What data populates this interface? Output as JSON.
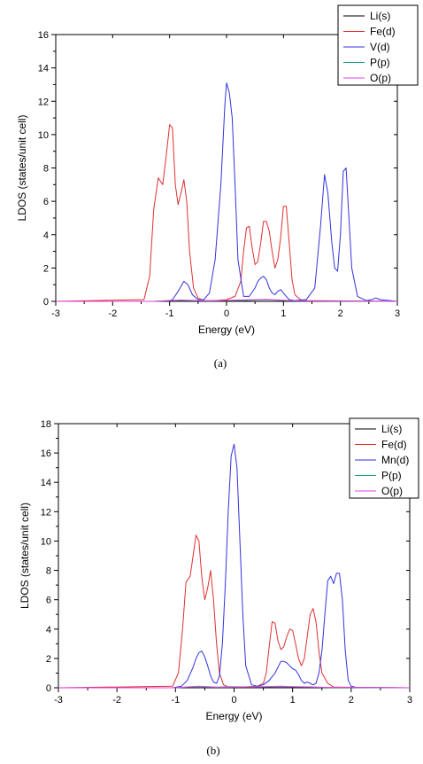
{
  "chart_data": [
    {
      "type": "line",
      "panel_label": "(a)",
      "xlabel": "Energy (eV)",
      "ylabel": "LDOS (states/unit cell)",
      "xlim": [
        -3,
        3
      ],
      "ylim": [
        0,
        16
      ],
      "xticks": [
        -3,
        -2,
        -1,
        0,
        1,
        2,
        3
      ],
      "yticks": [
        0,
        2,
        4,
        6,
        8,
        10,
        12,
        14,
        16
      ],
      "grid": false,
      "legend_position": "top-right",
      "series": [
        {
          "name": "Li(s)",
          "color": "#000000",
          "x": [
            -3,
            3
          ],
          "y": [
            0,
            0
          ]
        },
        {
          "name": "Fe(d)",
          "color": "#e03030",
          "x": [
            -3,
            -1.45,
            -1.35,
            -1.28,
            -1.2,
            -1.12,
            -1.05,
            -1.0,
            -0.95,
            -0.9,
            -0.85,
            -0.8,
            -0.75,
            -0.7,
            -0.65,
            -0.58,
            -0.5,
            -0.4,
            -0.2,
            0,
            0.15,
            0.25,
            0.3,
            0.35,
            0.4,
            0.45,
            0.5,
            0.55,
            0.6,
            0.65,
            0.7,
            0.75,
            0.8,
            0.85,
            0.9,
            0.95,
            1.0,
            1.05,
            1.1,
            1.15,
            1.2,
            1.3,
            1.4,
            3
          ],
          "y": [
            0,
            0.1,
            1.5,
            5.5,
            7.4,
            7.0,
            9.0,
            10.6,
            10.4,
            7.0,
            5.8,
            6.5,
            7.3,
            6.0,
            3.0,
            0.8,
            0.2,
            0.05,
            0.05,
            0.1,
            0.3,
            1.2,
            3.0,
            4.4,
            4.5,
            3.2,
            2.2,
            2.4,
            3.5,
            4.8,
            4.8,
            4.2,
            3.0,
            2.0,
            2.5,
            3.8,
            5.7,
            5.7,
            3.5,
            1.3,
            0.4,
            0.1,
            0.05,
            0
          ]
        },
        {
          "name": "V(d)",
          "color": "#3232e0",
          "x": [
            -3,
            -1.2,
            -1.0,
            -0.95,
            -0.85,
            -0.75,
            -0.68,
            -0.6,
            -0.5,
            -0.4,
            -0.3,
            -0.2,
            -0.1,
            -0.03,
            0.0,
            0.05,
            0.1,
            0.15,
            0.2,
            0.3,
            0.4,
            0.5,
            0.55,
            0.6,
            0.65,
            0.7,
            0.75,
            0.8,
            0.85,
            0.9,
            0.95,
            1.0,
            1.05,
            1.1,
            1.2,
            1.4,
            1.55,
            1.65,
            1.72,
            1.78,
            1.85,
            1.9,
            1.95,
            2.0,
            2.05,
            2.1,
            2.15,
            2.2,
            2.3,
            2.45,
            2.55,
            2.62,
            2.7,
            3
          ],
          "y": [
            0,
            0,
            0.05,
            0.1,
            0.6,
            1.2,
            1.0,
            0.4,
            0.1,
            0.1,
            0.5,
            2.5,
            7.0,
            11.8,
            13.1,
            12.5,
            11.0,
            7.0,
            2.5,
            0.3,
            0.3,
            0.8,
            1.2,
            1.4,
            1.5,
            1.3,
            0.8,
            0.5,
            0.4,
            0.6,
            0.7,
            0.5,
            0.3,
            0.1,
            0.05,
            0.1,
            0.8,
            4.5,
            7.6,
            6.5,
            3.5,
            2.0,
            1.8,
            4.0,
            7.8,
            8.0,
            5.0,
            2.0,
            0.3,
            0.05,
            0.1,
            0.2,
            0.1,
            0
          ]
        },
        {
          "name": "P(p)",
          "color": "#20a080",
          "x": [
            -3,
            -1.3,
            -1.0,
            -0.7,
            -0.3,
            0,
            0.3,
            0.5,
            0.7,
            1.0,
            1.3,
            3
          ],
          "y": [
            0,
            0,
            0.05,
            0.05,
            0.02,
            0.05,
            0.05,
            0.08,
            0.1,
            0.05,
            0.02,
            0
          ]
        },
        {
          "name": "O(p)",
          "color": "#e040e0",
          "x": [
            -3,
            -1.3,
            -1.0,
            -0.8,
            -0.4,
            -0.1,
            0.2,
            0.5,
            0.7,
            0.9,
            1.2,
            3
          ],
          "y": [
            0,
            0,
            0.05,
            0.08,
            0.03,
            0.05,
            0.08,
            0.1,
            0.12,
            0.08,
            0.03,
            0
          ]
        }
      ]
    },
    {
      "type": "line",
      "panel_label": "(b)",
      "xlabel": "Energy (eV)",
      "ylabel": "LDOS (states/unit cell)",
      "xlim": [
        -3,
        3
      ],
      "ylim": [
        0,
        18
      ],
      "xticks": [
        -3,
        -2,
        -1,
        0,
        1,
        2,
        3
      ],
      "yticks": [
        0,
        2,
        4,
        6,
        8,
        10,
        12,
        14,
        16,
        18
      ],
      "grid": false,
      "legend_position": "top-right",
      "series": [
        {
          "name": "Li(s)",
          "color": "#000000",
          "x": [
            -3,
            3
          ],
          "y": [
            0,
            0
          ]
        },
        {
          "name": "Fe(d)",
          "color": "#e03030",
          "x": [
            -3,
            -1.05,
            -0.95,
            -0.88,
            -0.82,
            -0.75,
            -0.7,
            -0.65,
            -0.6,
            -0.55,
            -0.5,
            -0.45,
            -0.4,
            -0.35,
            -0.3,
            -0.25,
            -0.18,
            -0.1,
            0.1,
            0.4,
            0.5,
            0.55,
            0.6,
            0.65,
            0.7,
            0.75,
            0.8,
            0.85,
            0.9,
            0.95,
            1.0,
            1.05,
            1.1,
            1.15,
            1.2,
            1.25,
            1.3,
            1.35,
            1.4,
            1.45,
            1.5,
            1.6,
            1.7,
            3
          ],
          "y": [
            0,
            0.1,
            1.0,
            4.0,
            7.2,
            7.6,
            9.0,
            10.4,
            10.0,
            7.5,
            6.0,
            6.8,
            8.0,
            6.0,
            3.0,
            1.0,
            0.2,
            0.05,
            0.05,
            0.1,
            0.3,
            1.0,
            2.8,
            4.5,
            4.4,
            3.2,
            2.6,
            2.8,
            3.5,
            4.0,
            3.9,
            3.0,
            2.0,
            1.5,
            2.0,
            3.5,
            5.0,
            5.4,
            4.5,
            2.5,
            1.0,
            0.3,
            0.05,
            0
          ]
        },
        {
          "name": "Mn(d)",
          "color": "#3232e0",
          "x": [
            -3,
            -1.05,
            -0.9,
            -0.8,
            -0.7,
            -0.65,
            -0.6,
            -0.55,
            -0.5,
            -0.45,
            -0.4,
            -0.35,
            -0.3,
            -0.25,
            -0.2,
            -0.15,
            -0.1,
            -0.05,
            0.0,
            0.05,
            0.1,
            0.15,
            0.2,
            0.3,
            0.4,
            0.5,
            0.6,
            0.7,
            0.8,
            0.85,
            0.9,
            0.95,
            1.0,
            1.05,
            1.1,
            1.15,
            1.2,
            1.25,
            1.3,
            1.35,
            1.4,
            1.45,
            1.5,
            1.55,
            1.6,
            1.65,
            1.7,
            1.75,
            1.8,
            1.85,
            1.9,
            1.95,
            2.0,
            2.1,
            3
          ],
          "y": [
            0,
            0,
            0.1,
            0.5,
            1.4,
            2.0,
            2.4,
            2.5,
            2.1,
            1.5,
            0.8,
            0.4,
            0.3,
            0.8,
            3.0,
            7.0,
            12.0,
            15.8,
            16.6,
            15.0,
            10.0,
            5.0,
            1.5,
            0.2,
            0.1,
            0.2,
            0.5,
            1.0,
            1.8,
            1.8,
            1.7,
            1.5,
            1.3,
            1.2,
            0.9,
            0.5,
            0.3,
            0.4,
            0.3,
            0.2,
            0.3,
            1.0,
            2.5,
            5.0,
            7.3,
            7.6,
            7.1,
            7.8,
            7.8,
            6.0,
            2.5,
            0.5,
            0.1,
            0.02,
            0
          ]
        },
        {
          "name": "P(p)",
          "color": "#20a080",
          "x": [
            -3,
            -1.0,
            -0.8,
            -0.5,
            -0.2,
            0,
            0.3,
            0.6,
            0.8,
            1.0,
            1.3,
            1.6,
            3
          ],
          "y": [
            0,
            0,
            0.05,
            0.05,
            0.03,
            0.05,
            0.05,
            0.06,
            0.08,
            0.06,
            0.05,
            0.02,
            0
          ]
        },
        {
          "name": "O(p)",
          "color": "#e040e0",
          "x": [
            -3,
            -1.0,
            -0.8,
            -0.6,
            -0.3,
            -0.05,
            0.2,
            0.5,
            0.8,
            1.0,
            1.3,
            1.6,
            3
          ],
          "y": [
            0,
            0,
            0.06,
            0.1,
            0.05,
            0.08,
            0.06,
            0.08,
            0.1,
            0.08,
            0.06,
            0.03,
            0
          ]
        }
      ]
    }
  ]
}
